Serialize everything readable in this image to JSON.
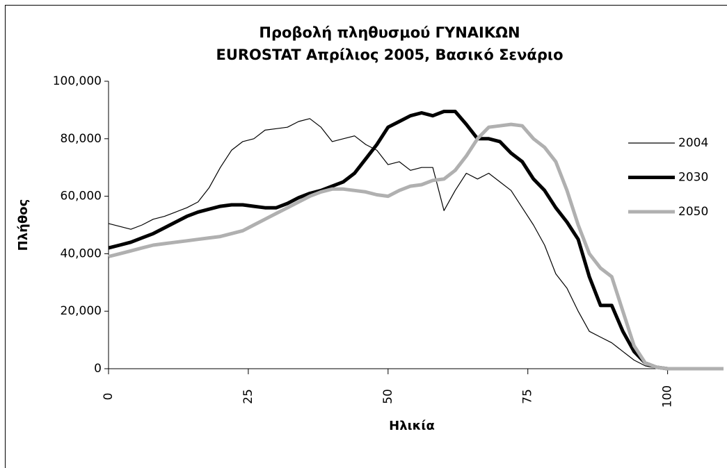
{
  "chart_data": {
    "type": "line",
    "title": "Προβολή πληθυσμού ΓΥΝΑΙΚΩΝ",
    "subtitle": "EUROSTAT Απρίλιος 2005, Βασικό Σενάριο",
    "x_label": "Ηλικία",
    "y_label": "Πλήθος",
    "x": [
      0,
      2,
      4,
      6,
      8,
      10,
      12,
      14,
      16,
      18,
      20,
      22,
      24,
      26,
      28,
      30,
      32,
      34,
      36,
      38,
      40,
      42,
      44,
      46,
      48,
      50,
      52,
      54,
      56,
      58,
      60,
      62,
      64,
      66,
      68,
      70,
      72,
      74,
      76,
      78,
      80,
      82,
      84,
      86,
      88,
      90,
      92,
      94,
      96,
      98,
      100,
      102,
      104,
      106,
      108,
      110
    ],
    "xlim": [
      0,
      110
    ],
    "xticks": [
      0,
      25,
      50,
      75,
      100
    ],
    "ylim": [
      0,
      100000
    ],
    "yticks": [
      {
        "value": 0,
        "label": "0"
      },
      {
        "value": 20000,
        "label": "20,000"
      },
      {
        "value": 40000,
        "label": "40,000"
      },
      {
        "value": 60000,
        "label": "60,000"
      },
      {
        "value": 80000,
        "label": "80,000"
      },
      {
        "value": 100000,
        "label": "100,000"
      }
    ],
    "legend": "right",
    "series": [
      {
        "name": "2004",
        "color": "#000000",
        "width": 1.2,
        "values": [
          50500,
          49500,
          48500,
          50000,
          52000,
          53000,
          54500,
          56000,
          58000,
          63000,
          70000,
          76000,
          79000,
          80000,
          83000,
          83500,
          84000,
          86000,
          87000,
          84000,
          79000,
          80000,
          81000,
          78000,
          76000,
          71000,
          72000,
          69000,
          70000,
          70000,
          55000,
          62000,
          68000,
          66000,
          68000,
          65000,
          62000,
          56000,
          50000,
          43000,
          33000,
          28000,
          20000,
          13000,
          11000,
          9000,
          6000,
          3000,
          1000,
          200,
          0,
          null,
          null,
          null,
          null,
          null
        ]
      },
      {
        "name": "2030",
        "color": "#000000",
        "width": 5,
        "values": [
          42000,
          43000,
          44000,
          45500,
          47000,
          49000,
          51000,
          53000,
          54500,
          55500,
          56500,
          57000,
          57000,
          56500,
          56000,
          56000,
          57500,
          59500,
          61000,
          62000,
          63500,
          65000,
          68000,
          73000,
          78000,
          84000,
          86000,
          88000,
          89000,
          88000,
          89500,
          89500,
          85000,
          80000,
          80000,
          79000,
          75000,
          72000,
          66000,
          62000,
          56000,
          51000,
          45000,
          32000,
          22000,
          22000,
          13000,
          6000,
          2000,
          500,
          0,
          null,
          null,
          null,
          null,
          null
        ]
      },
      {
        "name": "2050",
        "color": "#b0b0b0",
        "width": 5,
        "values": [
          39000,
          40000,
          41000,
          42000,
          43000,
          43500,
          44000,
          44500,
          45000,
          45500,
          46000,
          47000,
          48000,
          50000,
          52000,
          54000,
          56000,
          58000,
          60000,
          61500,
          62500,
          62500,
          62000,
          61500,
          60500,
          60000,
          62000,
          63500,
          64000,
          65500,
          66000,
          69000,
          74000,
          80000,
          84000,
          84500,
          85000,
          84500,
          80000,
          77000,
          72000,
          62000,
          50000,
          40000,
          35000,
          32000,
          20000,
          8000,
          2000,
          500,
          0,
          0,
          0,
          0,
          0,
          0
        ]
      }
    ]
  }
}
